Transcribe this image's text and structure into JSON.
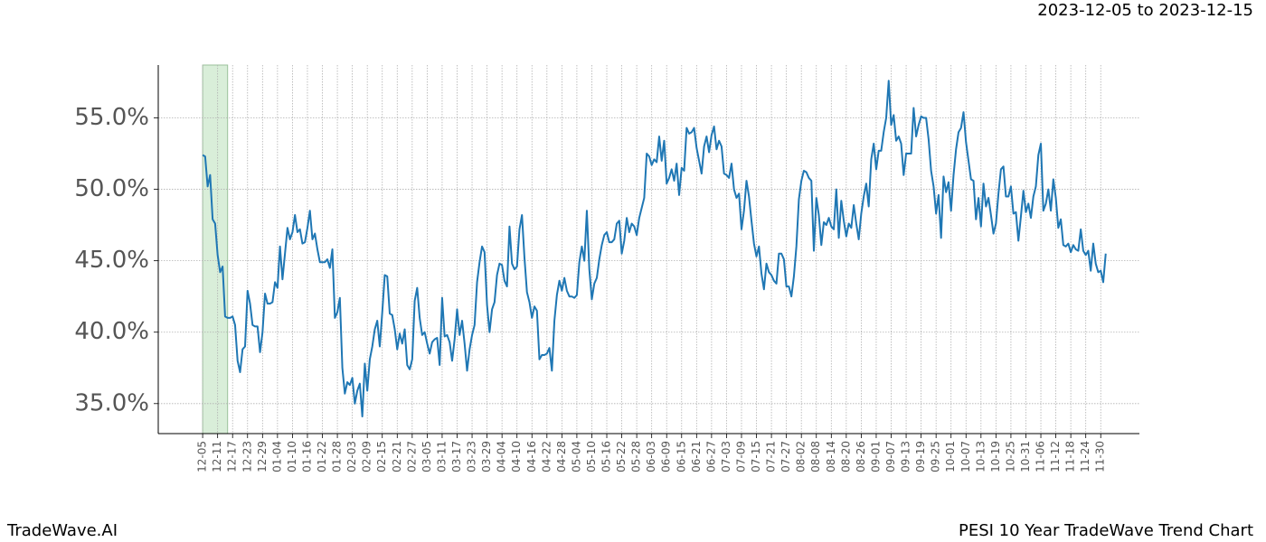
{
  "chart_data": {
    "type": "line",
    "date_range": "2023-12-05 to 2023-12-15",
    "brand": "TradeWave.AI",
    "caption": "PESI 10 Year TradeWave Trend Chart",
    "xlim": [
      -17.8,
      375.5
    ],
    "ylim": [
      32.9,
      58.7
    ],
    "yticks": [
      {
        "value": 35,
        "label": "35.0%"
      },
      {
        "value": 40,
        "label": "40.0%"
      },
      {
        "value": 45,
        "label": "45.0%"
      },
      {
        "value": 50,
        "label": "50.0%"
      },
      {
        "value": 55,
        "label": "55.0%"
      }
    ],
    "xticks": [
      {
        "value": 0,
        "label": "12-05"
      },
      {
        "value": 6,
        "label": "12-11"
      },
      {
        "value": 12,
        "label": "12-17"
      },
      {
        "value": 18,
        "label": "12-23"
      },
      {
        "value": 24,
        "label": "12-29"
      },
      {
        "value": 30,
        "label": "01-04"
      },
      {
        "value": 36,
        "label": "01-10"
      },
      {
        "value": 42,
        "label": "01-16"
      },
      {
        "value": 48,
        "label": "01-22"
      },
      {
        "value": 54,
        "label": "01-28"
      },
      {
        "value": 60,
        "label": "02-03"
      },
      {
        "value": 66,
        "label": "02-09"
      },
      {
        "value": 72,
        "label": "02-15"
      },
      {
        "value": 78,
        "label": "02-21"
      },
      {
        "value": 84,
        "label": "02-27"
      },
      {
        "value": 90,
        "label": "03-05"
      },
      {
        "value": 96,
        "label": "03-11"
      },
      {
        "value": 102,
        "label": "03-17"
      },
      {
        "value": 108,
        "label": "03-23"
      },
      {
        "value": 114,
        "label": "03-29"
      },
      {
        "value": 120,
        "label": "04-04"
      },
      {
        "value": 126,
        "label": "04-10"
      },
      {
        "value": 132,
        "label": "04-16"
      },
      {
        "value": 138,
        "label": "04-22"
      },
      {
        "value": 144,
        "label": "04-28"
      },
      {
        "value": 150,
        "label": "05-04"
      },
      {
        "value": 156,
        "label": "05-10"
      },
      {
        "value": 162,
        "label": "05-16"
      },
      {
        "value": 168,
        "label": "05-22"
      },
      {
        "value": 174,
        "label": "05-28"
      },
      {
        "value": 180,
        "label": "06-03"
      },
      {
        "value": 186,
        "label": "06-09"
      },
      {
        "value": 192,
        "label": "06-15"
      },
      {
        "value": 198,
        "label": "06-21"
      },
      {
        "value": 204,
        "label": "06-27"
      },
      {
        "value": 210,
        "label": "07-03"
      },
      {
        "value": 216,
        "label": "07-09"
      },
      {
        "value": 222,
        "label": "07-15"
      },
      {
        "value": 228,
        "label": "07-21"
      },
      {
        "value": 234,
        "label": "07-27"
      },
      {
        "value": 240,
        "label": "08-02"
      },
      {
        "value": 246,
        "label": "08-08"
      },
      {
        "value": 252,
        "label": "08-14"
      },
      {
        "value": 258,
        "label": "08-20"
      },
      {
        "value": 264,
        "label": "08-26"
      },
      {
        "value": 270,
        "label": "09-01"
      },
      {
        "value": 276,
        "label": "09-07"
      },
      {
        "value": 282,
        "label": "09-13"
      },
      {
        "value": 288,
        "label": "09-19"
      },
      {
        "value": 294,
        "label": "09-25"
      },
      {
        "value": 300,
        "label": "10-01"
      },
      {
        "value": 306,
        "label": "10-07"
      },
      {
        "value": 312,
        "label": "10-13"
      },
      {
        "value": 318,
        "label": "10-19"
      },
      {
        "value": 324,
        "label": "10-25"
      },
      {
        "value": 330,
        "label": "10-31"
      },
      {
        "value": 336,
        "label": "11-06"
      },
      {
        "value": 342,
        "label": "11-12"
      },
      {
        "value": 348,
        "label": "11-18"
      },
      {
        "value": 354,
        "label": "11-24"
      },
      {
        "value": 360,
        "label": "11-30"
      }
    ],
    "grid": true,
    "highlight_x": [
      0,
      10
    ],
    "highlight_color": "#d9eed9",
    "color": "#1f77b4",
    "x": [
      0,
      1,
      2,
      3,
      4,
      5,
      6,
      7,
      8,
      9,
      10,
      11,
      12,
      13,
      14,
      15,
      16,
      17,
      18,
      19,
      20,
      21,
      22,
      23,
      24,
      25,
      26,
      27,
      28,
      29,
      30,
      31,
      32,
      33,
      34,
      35,
      36,
      37,
      38,
      39,
      40,
      41,
      42,
      43,
      44,
      45,
      46,
      47,
      48,
      49,
      50,
      51,
      52,
      53,
      54,
      55,
      56,
      57,
      58,
      59,
      60,
      61,
      62,
      63,
      64,
      65,
      66,
      67,
      68,
      69,
      70,
      71,
      72,
      73,
      74,
      75,
      76,
      77,
      78,
      79,
      80,
      81,
      82,
      83,
      84,
      85,
      86,
      87,
      88,
      89,
      90,
      91,
      92,
      93,
      94,
      95,
      96,
      97,
      98,
      99,
      100,
      101,
      102,
      103,
      104,
      105,
      106,
      107,
      108,
      109,
      110,
      111,
      112,
      113,
      114,
      115,
      116,
      117,
      118,
      119,
      120,
      121,
      122,
      123,
      124,
      125,
      126,
      127,
      128,
      129,
      130,
      131,
      132,
      133,
      134,
      135,
      136,
      137,
      138,
      139,
      140,
      141,
      142,
      143,
      144,
      145,
      146,
      147,
      148,
      149,
      150,
      151,
      152,
      153,
      154,
      155,
      156,
      157,
      158,
      159,
      160,
      161,
      162,
      163,
      164,
      165,
      166,
      167,
      168,
      169,
      170,
      171,
      172,
      173,
      174,
      175,
      176,
      177,
      178,
      179,
      180,
      181,
      182,
      183,
      184,
      185,
      186,
      187,
      188,
      189,
      190,
      191,
      192,
      193,
      194,
      195,
      196,
      197,
      198,
      199,
      200,
      201,
      202,
      203,
      204,
      205,
      206,
      207,
      208,
      209,
      210,
      211,
      212,
      213,
      214,
      215,
      216,
      217,
      218,
      219,
      220,
      221,
      222,
      223,
      224,
      225,
      226,
      227,
      228,
      229,
      230,
      231,
      232,
      233,
      234,
      235,
      236,
      237,
      238,
      239,
      240,
      241,
      242,
      243,
      244,
      245,
      246,
      247,
      248,
      249,
      250,
      251,
      252,
      253,
      254,
      255,
      256,
      257,
      258,
      259,
      260,
      261,
      262,
      263,
      264,
      265,
      266,
      267,
      268,
      269,
      270,
      271,
      272,
      273,
      274,
      275,
      276,
      277,
      278,
      279,
      280,
      281,
      282,
      283,
      284,
      285,
      286,
      287,
      288,
      289,
      290,
      291,
      292,
      293,
      294,
      295,
      296,
      297,
      298,
      299,
      300,
      301,
      302,
      303,
      304,
      305,
      306,
      307,
      308,
      309,
      310,
      311,
      312,
      313,
      314,
      315,
      316,
      317,
      318,
      319,
      320,
      321,
      322,
      323,
      324,
      325,
      326,
      327,
      328,
      329,
      330,
      331,
      332,
      333,
      334,
      335,
      336,
      337,
      338,
      339,
      340,
      341,
      342,
      343,
      344,
      345,
      346,
      347,
      348,
      349,
      350,
      351,
      352,
      353,
      354,
      355,
      356,
      357,
      358,
      359,
      360,
      361,
      362
    ],
    "values": [
      52.4,
      52.3,
      50.2,
      51.0,
      47.9,
      47.6,
      45.4,
      44.2,
      44.6,
      41.1,
      41.0,
      41.0,
      41.1,
      40.5,
      38.0,
      37.2,
      38.8,
      39.0,
      42.9,
      42.0,
      40.5,
      40.4,
      40.4,
      38.6,
      40.0,
      42.7,
      42.0,
      42.0,
      42.1,
      43.5,
      43.1,
      46.0,
      43.7,
      45.5,
      47.3,
      46.5,
      47.0,
      48.2,
      47.0,
      47.2,
      46.2,
      46.3,
      47.3,
      48.5,
      46.5,
      46.9,
      45.8,
      44.9,
      44.9,
      44.9,
      45.1,
      44.5,
      45.8,
      41.0,
      41.4,
      42.4,
      37.5,
      35.7,
      36.5,
      36.3,
      36.8,
      35.0,
      35.9,
      36.4,
      34.1,
      37.8,
      35.9,
      38.1,
      39.0,
      40.2,
      40.8,
      39.0,
      41.4,
      44.0,
      43.9,
      41.3,
      41.2,
      40.2,
      38.8,
      39.9,
      39.2,
      40.2,
      37.7,
      37.4,
      38.1,
      42.2,
      43.1,
      41.0,
      39.8,
      40.0,
      39.2,
      38.5,
      39.3,
      39.5,
      39.6,
      37.7,
      42.4,
      39.7,
      39.8,
      39.3,
      38.0,
      39.5,
      41.6,
      39.8,
      40.8,
      39.2,
      37.3,
      38.8,
      39.8,
      40.5,
      43.5,
      44.9,
      46.0,
      45.6,
      41.9,
      40.0,
      41.6,
      42.1,
      44.0,
      44.8,
      44.7,
      43.6,
      43.2,
      47.4,
      44.8,
      44.4,
      44.6,
      47.2,
      48.2,
      45.2,
      42.8,
      42.1,
      41.0,
      41.8,
      41.5,
      38.1,
      38.4,
      38.4,
      38.5,
      38.9,
      37.3,
      40.8,
      42.6,
      43.6,
      42.9,
      43.8,
      42.9,
      42.5,
      42.5,
      42.4,
      42.6,
      44.9,
      46.0,
      45.0,
      48.5,
      44.4,
      42.3,
      43.4,
      43.8,
      45.1,
      46.1,
      46.8,
      47.0,
      46.3,
      46.3,
      46.5,
      47.6,
      47.8,
      45.5,
      46.4,
      48.0,
      47.0,
      47.6,
      47.4,
      46.8,
      48.0,
      48.7,
      49.4,
      52.5,
      52.3,
      51.7,
      52.1,
      51.9,
      53.7,
      52.0,
      53.4,
      50.4,
      50.8,
      51.4,
      50.6,
      51.8,
      49.6,
      51.5,
      51.3,
      54.3,
      53.9,
      54.0,
      54.3,
      52.9,
      52.0,
      51.1,
      53.0,
      53.7,
      52.6,
      53.8,
      54.4,
      52.8,
      53.4,
      53.0,
      51.1,
      51.0,
      50.8,
      51.8,
      50.0,
      49.4,
      49.7,
      47.2,
      48.5,
      50.6,
      49.5,
      47.8,
      46.2,
      45.3,
      46.0,
      44.1,
      43.0,
      44.8,
      44.2,
      44.0,
      43.6,
      43.4,
      45.5,
      45.5,
      45.1,
      43.2,
      43.2,
      42.5,
      43.9,
      46.0,
      49.3,
      50.6,
      51.3,
      51.2,
      50.8,
      50.6,
      45.7,
      49.4,
      48.2,
      46.1,
      47.7,
      47.5,
      48.0,
      47.4,
      47.2,
      50.0,
      46.6,
      49.2,
      47.8,
      46.7,
      47.6,
      47.3,
      48.9,
      47.6,
      46.5,
      48.3,
      49.5,
      50.4,
      48.8,
      52.1,
      53.2,
      51.4,
      52.7,
      52.7,
      54.0,
      55.0,
      57.6,
      54.5,
      55.2,
      53.4,
      53.7,
      53.2,
      51.0,
      52.5,
      52.5,
      52.5,
      55.7,
      53.7,
      54.5,
      55.1,
      55.0,
      55.0,
      53.5,
      51.3,
      50.2,
      48.3,
      49.6,
      46.6,
      50.9,
      49.8,
      50.5,
      48.5,
      51.0,
      52.8,
      54.0,
      54.3,
      55.4,
      53.3,
      52.0,
      50.7,
      50.6,
      47.9,
      49.4,
      47.4,
      50.4,
      48.8,
      49.4,
      48.2,
      46.9,
      47.6,
      49.7,
      51.4,
      51.6,
      49.5,
      49.5,
      50.2,
      48.3,
      48.4,
      46.4,
      48.1,
      49.9,
      48.4,
      49.0,
      48.0,
      49.5,
      50.2,
      52.4,
      53.2,
      48.5,
      49.0,
      50.0,
      48.5,
      50.7,
      49.4,
      47.3,
      47.9,
      46.1,
      46.0,
      46.2,
      45.6,
      46.1,
      45.8,
      45.7,
      47.2,
      45.7,
      45.4,
      45.7,
      44.3,
      46.2,
      44.8,
      44.2,
      44.3,
      43.5,
      45.5
    ]
  }
}
